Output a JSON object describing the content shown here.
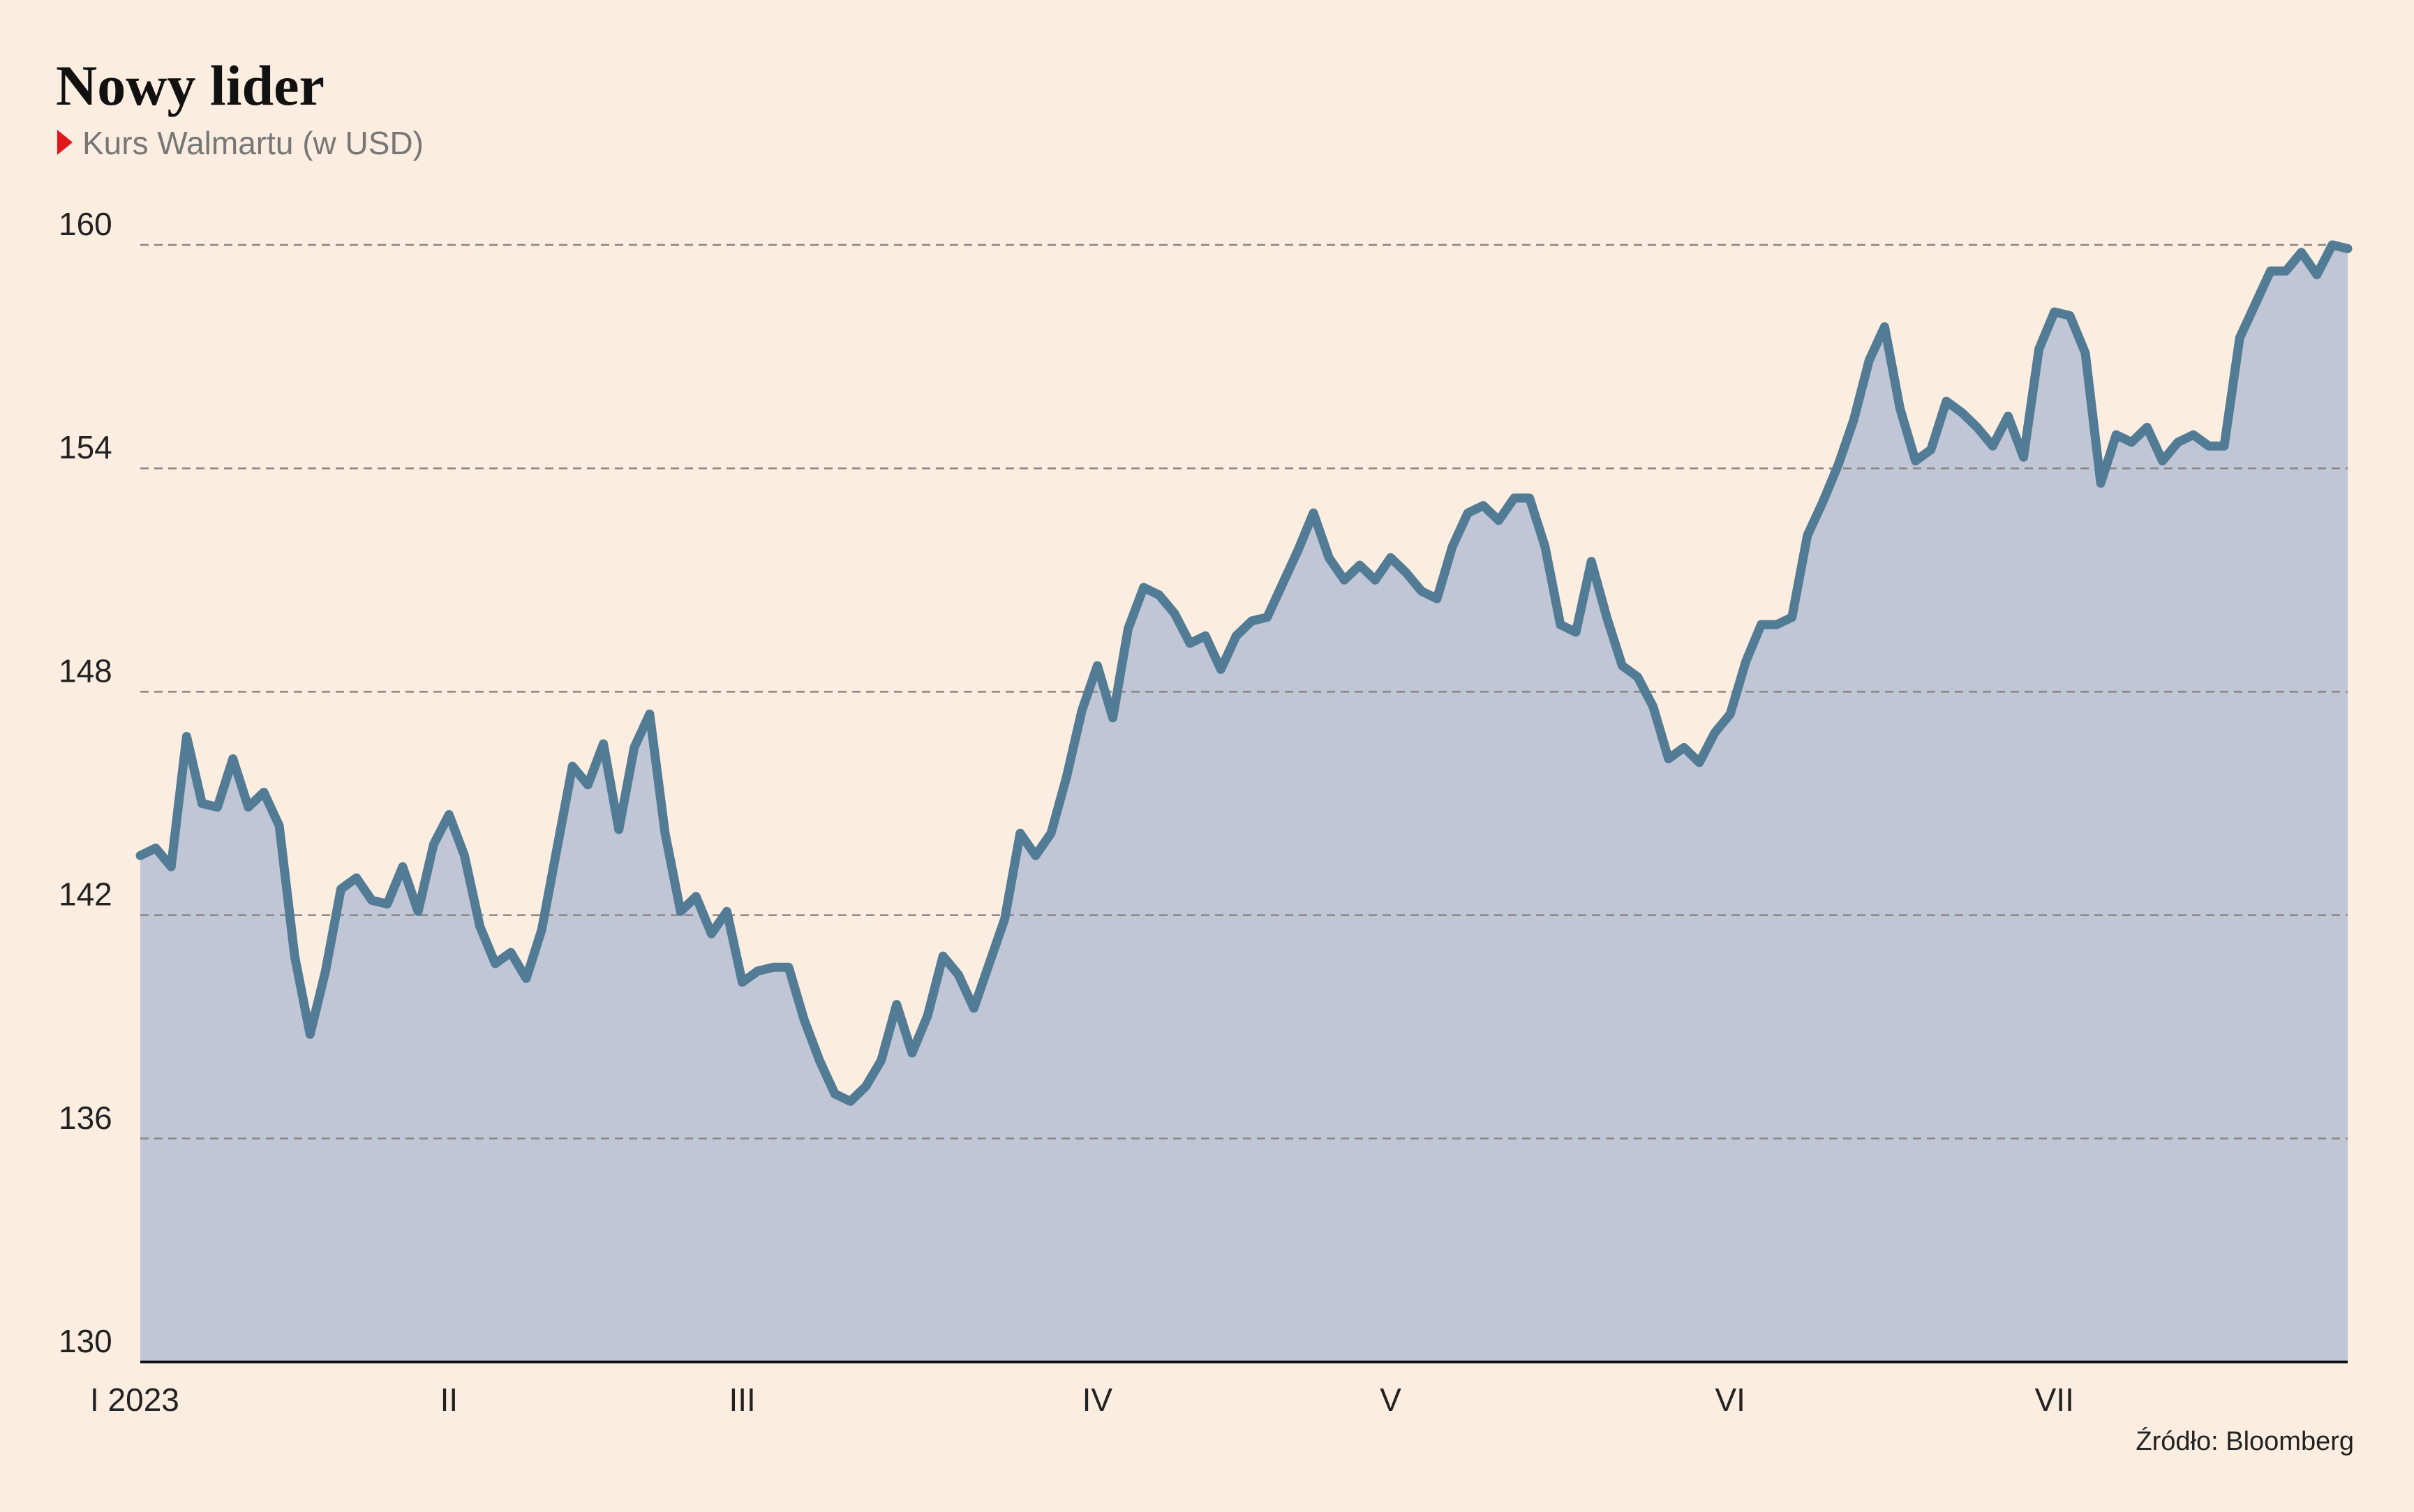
{
  "chart_data": {
    "type": "area",
    "title": "Nowy lider",
    "subtitle": "Kurs Walmartu (w USD)",
    "source": "Źródło: Bloomberg",
    "series": [
      {
        "name": "Walmart",
        "color": "#527b96",
        "fill": "#c1c6d6",
        "values": [
          143.6,
          143.8,
          143.3,
          146.8,
          145.0,
          144.9,
          146.2,
          144.9,
          145.3,
          144.4,
          140.9,
          138.8,
          140.5,
          142.7,
          143.0,
          142.4,
          142.3,
          143.3,
          142.1,
          143.9,
          144.7,
          143.6,
          141.7,
          140.7,
          141.0,
          140.3,
          141.6,
          143.8,
          146.0,
          145.5,
          146.6,
          144.3,
          146.5,
          147.4,
          144.2,
          142.1,
          142.5,
          141.5,
          142.1,
          140.2,
          140.5,
          140.6,
          140.6,
          139.2,
          138.1,
          137.2,
          137.0,
          137.4,
          138.1,
          139.6,
          138.3,
          139.3,
          140.9,
          140.4,
          139.5,
          140.7,
          141.9,
          144.2,
          143.6,
          144.2,
          145.7,
          147.5,
          148.7,
          147.3,
          149.7,
          150.8,
          150.6,
          150.1,
          149.3,
          149.5,
          148.6,
          149.5,
          149.9,
          150.0,
          150.9,
          151.8,
          152.8,
          151.6,
          151.0,
          151.4,
          151.0,
          151.6,
          151.2,
          150.7,
          150.5,
          151.9,
          152.8,
          153.0,
          152.6,
          153.2,
          153.2,
          151.9,
          149.8,
          149.6,
          151.5,
          150.0,
          148.7,
          148.4,
          147.6,
          146.2,
          146.5,
          146.1,
          146.9,
          147.4,
          148.8,
          149.8,
          149.8,
          150.0,
          152.2,
          153.1,
          154.1,
          155.3,
          156.9,
          157.8,
          155.6,
          154.2,
          154.5,
          155.8,
          155.5,
          155.1,
          154.6,
          155.4,
          154.3,
          157.2,
          158.2,
          158.1,
          157.1,
          153.6,
          154.9,
          154.7,
          155.1,
          154.2,
          154.7,
          154.9,
          154.6,
          154.6,
          157.5,
          158.4,
          159.3,
          159.3,
          159.8,
          159.2,
          160.0,
          159.9
        ]
      }
    ],
    "xlim": [
      0,
      143
    ],
    "xticks": [
      {
        "value": 0,
        "label": "I 2023"
      },
      {
        "value": 20,
        "label": "II"
      },
      {
        "value": 39,
        "label": "III"
      },
      {
        "value": 62,
        "label": "IV"
      },
      {
        "value": 81,
        "label": "V"
      },
      {
        "value": 103,
        "label": "VI"
      },
      {
        "value": 124,
        "label": "VII"
      }
    ],
    "ylim": [
      130,
      160
    ],
    "yticks": [
      130,
      136,
      142,
      148,
      154,
      160
    ],
    "grid": true
  }
}
